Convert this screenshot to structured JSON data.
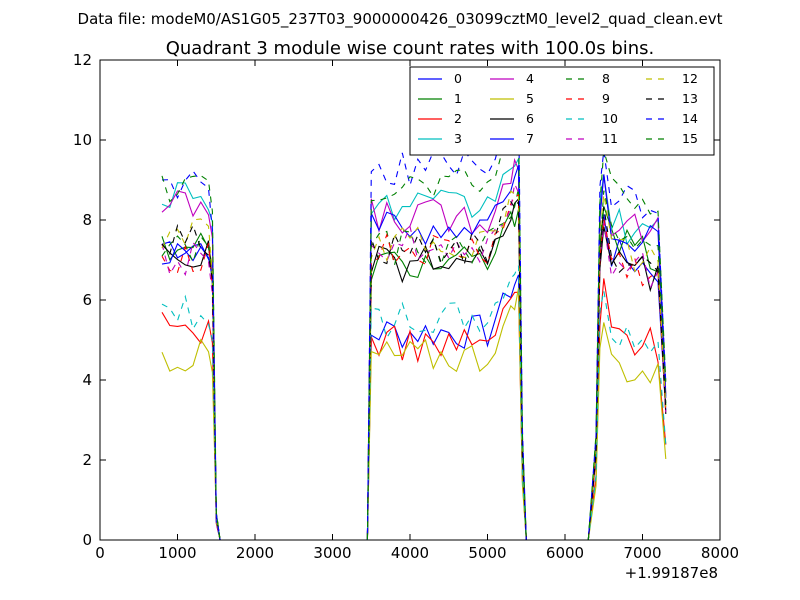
{
  "suptitle": "Data file: modeM0/AS1G05_237T03_9000000426_03099cztM0_level2_quad_clean.evt",
  "chart_data": {
    "type": "line",
    "title": "Quadrant 3 module wise count rates with 100.0s bins.",
    "xlabel": "",
    "ylabel": "",
    "x_offset_label": "+1.99187e8",
    "xlim": [
      0,
      8000
    ],
    "ylim": [
      0,
      12
    ],
    "xticks": [
      "0",
      "1000",
      "2000",
      "3000",
      "4000",
      "5000",
      "6000",
      "7000",
      "8000"
    ],
    "yticks": [
      "0",
      "2",
      "4",
      "6",
      "8",
      "10",
      "12"
    ],
    "grid": false,
    "legend_placement": "top-right",
    "legend_columns": 4,
    "colors": [
      "#0000ff",
      "#008000",
      "#ff0000",
      "#00bfbf",
      "#bf00bf",
      "#bfbf00",
      "#000000",
      "#0000ff",
      "#008000",
      "#ff0000",
      "#00bfbf",
      "#bf00bf",
      "#bfbf00",
      "#000000",
      "#0000ff",
      "#008000"
    ],
    "dashed": [
      false,
      false,
      false,
      false,
      false,
      false,
      false,
      false,
      true,
      true,
      true,
      true,
      true,
      true,
      true,
      true
    ],
    "segment_x": [
      [
        800,
        900,
        1000,
        1100,
        1200,
        1300,
        1400,
        1450,
        1500,
        1550,
        1600
      ],
      [
        3400,
        3450,
        3500,
        3600,
        3700,
        3800,
        3900,
        4000,
        4100,
        4200,
        4300,
        4400,
        4500,
        4600,
        4700,
        4800,
        4900,
        5000,
        5100,
        5200,
        5300,
        5350,
        5400,
        5450,
        5500
      ],
      [
        6300,
        6400,
        6450,
        6500,
        6600,
        6700,
        6800,
        6900,
        7000,
        7100,
        7200,
        7300
      ]
    ],
    "levels": [
      [
        7.4,
        5.2,
        7.2
      ],
      [
        7.4,
        6.9,
        7.5
      ],
      [
        5.3,
        4.9,
        5.3
      ],
      [
        8.7,
        8.3,
        8.0
      ],
      [
        8.3,
        8.1,
        8.1
      ],
      [
        4.6,
        4.6,
        4.5
      ],
      [
        7.1,
        6.9,
        7.0
      ],
      [
        7.3,
        7.8,
        7.9
      ],
      [
        7.3,
        7.3,
        7.6
      ],
      [
        7.1,
        7.2,
        7.0
      ],
      [
        5.7,
        5.5,
        5.3
      ],
      [
        7.0,
        7.4,
        7.1
      ],
      [
        7.6,
        7.4,
        7.4
      ],
      [
        7.5,
        7.3,
        7.2
      ],
      [
        8.9,
        9.3,
        8.7
      ],
      [
        8.8,
        8.9,
        8.8
      ]
    ],
    "series": [
      {
        "name": "0"
      },
      {
        "name": "1"
      },
      {
        "name": "2"
      },
      {
        "name": "3"
      },
      {
        "name": "4"
      },
      {
        "name": "5"
      },
      {
        "name": "6"
      },
      {
        "name": "7"
      },
      {
        "name": "8"
      },
      {
        "name": "9"
      },
      {
        "name": "10"
      },
      {
        "name": "11"
      },
      {
        "name": "12"
      },
      {
        "name": "13"
      },
      {
        "name": "14"
      },
      {
        "name": "15"
      }
    ]
  }
}
